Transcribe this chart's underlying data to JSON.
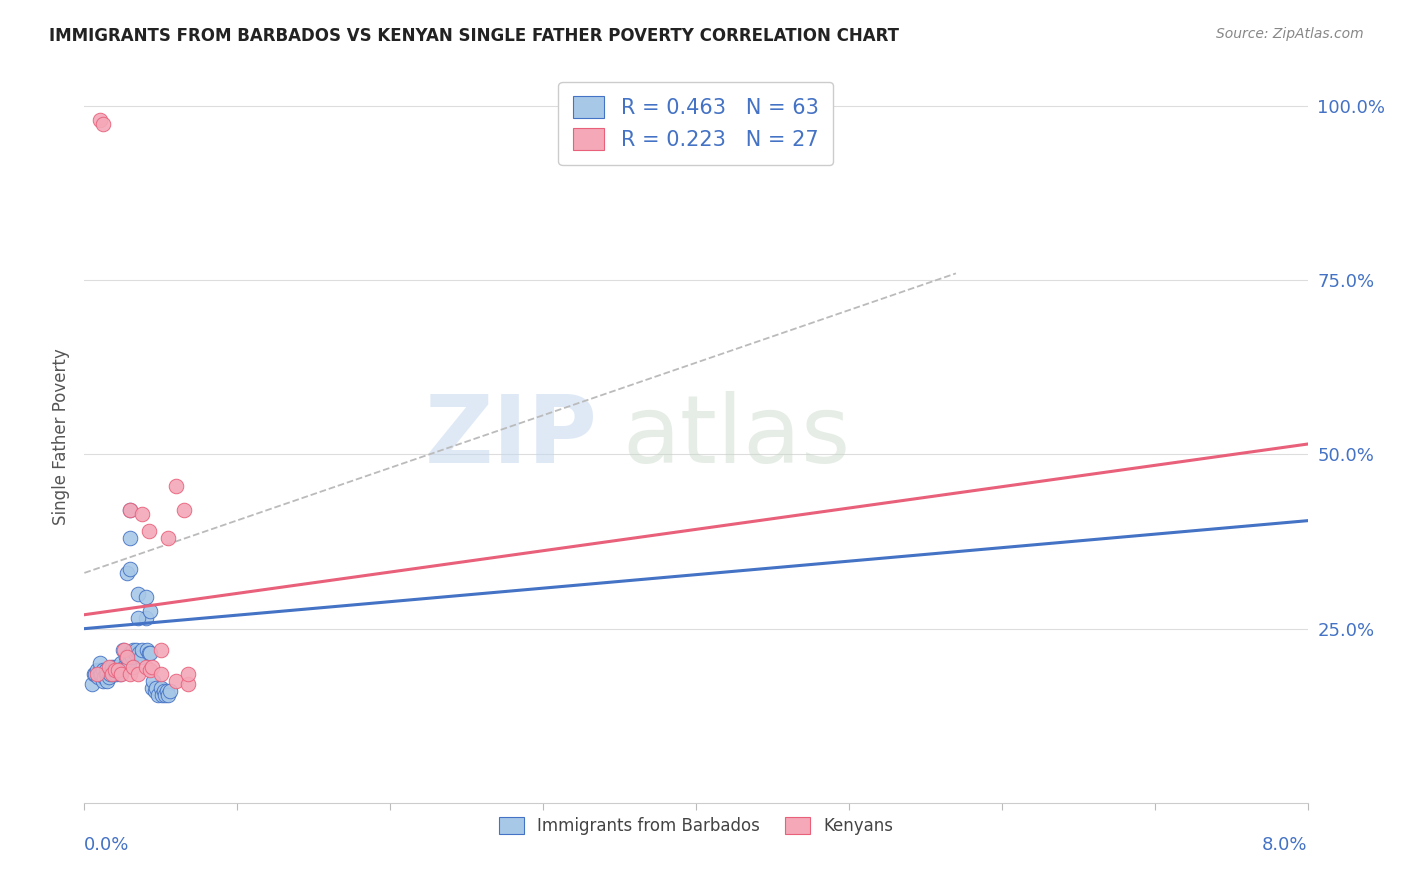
{
  "title": "IMMIGRANTS FROM BARBADOS VS KENYAN SINGLE FATHER POVERTY CORRELATION CHART",
  "source": "Source: ZipAtlas.com",
  "ylabel": "Single Father Poverty",
  "ytick_labels": [
    "25.0%",
    "50.0%",
    "75.0%",
    "100.0%"
  ],
  "ytick_values": [
    0.25,
    0.5,
    0.75,
    1.0
  ],
  "xlim": [
    0.0,
    0.08
  ],
  "ylim": [
    0.0,
    1.05
  ],
  "color_blue": "#A8C8E8",
  "color_pink": "#F4A8B8",
  "color_blue_line": "#4472C4",
  "color_pink_line": "#E8607A",
  "color_dashed": "#BBBBBB",
  "watermark_zip": "ZIP",
  "watermark_atlas": "atlas",
  "blue_scatter": [
    [
      0.0005,
      0.17
    ],
    [
      0.0006,
      0.185
    ],
    [
      0.0007,
      0.185
    ],
    [
      0.0008,
      0.19
    ],
    [
      0.0009,
      0.18
    ],
    [
      0.001,
      0.185
    ],
    [
      0.001,
      0.19
    ],
    [
      0.001,
      0.2
    ],
    [
      0.0011,
      0.185
    ],
    [
      0.0012,
      0.175
    ],
    [
      0.0012,
      0.19
    ],
    [
      0.0013,
      0.18
    ],
    [
      0.0014,
      0.185
    ],
    [
      0.0014,
      0.19
    ],
    [
      0.0015,
      0.185
    ],
    [
      0.0015,
      0.175
    ],
    [
      0.0016,
      0.18
    ],
    [
      0.0017,
      0.185
    ],
    [
      0.0018,
      0.195
    ],
    [
      0.0019,
      0.185
    ],
    [
      0.002,
      0.19
    ],
    [
      0.002,
      0.195
    ],
    [
      0.0021,
      0.185
    ],
    [
      0.0022,
      0.19
    ],
    [
      0.0023,
      0.185
    ],
    [
      0.0024,
      0.2
    ],
    [
      0.0025,
      0.22
    ],
    [
      0.0026,
      0.195
    ],
    [
      0.0027,
      0.21
    ],
    [
      0.0028,
      0.195
    ],
    [
      0.0029,
      0.2
    ],
    [
      0.003,
      0.215
    ],
    [
      0.0031,
      0.21
    ],
    [
      0.0032,
      0.22
    ],
    [
      0.0033,
      0.215
    ],
    [
      0.0034,
      0.22
    ],
    [
      0.0035,
      0.3
    ],
    [
      0.0036,
      0.215
    ],
    [
      0.0037,
      0.21
    ],
    [
      0.0038,
      0.22
    ],
    [
      0.004,
      0.265
    ],
    [
      0.0041,
      0.22
    ],
    [
      0.0042,
      0.215
    ],
    [
      0.0043,
      0.215
    ],
    [
      0.0044,
      0.165
    ],
    [
      0.0045,
      0.175
    ],
    [
      0.0046,
      0.16
    ],
    [
      0.0047,
      0.165
    ],
    [
      0.0048,
      0.155
    ],
    [
      0.005,
      0.165
    ],
    [
      0.0051,
      0.155
    ],
    [
      0.0052,
      0.16
    ],
    [
      0.0053,
      0.155
    ],
    [
      0.0054,
      0.16
    ],
    [
      0.0055,
      0.155
    ],
    [
      0.0056,
      0.16
    ],
    [
      0.0028,
      0.33
    ],
    [
      0.003,
      0.335
    ],
    [
      0.003,
      0.38
    ],
    [
      0.003,
      0.42
    ],
    [
      0.0035,
      0.265
    ],
    [
      0.004,
      0.295
    ],
    [
      0.0043,
      0.275
    ]
  ],
  "pink_scatter": [
    [
      0.0008,
      0.185
    ],
    [
      0.001,
      0.98
    ],
    [
      0.0012,
      0.975
    ],
    [
      0.0016,
      0.195
    ],
    [
      0.0018,
      0.185
    ],
    [
      0.002,
      0.19
    ],
    [
      0.0022,
      0.19
    ],
    [
      0.0024,
      0.185
    ],
    [
      0.0026,
      0.22
    ],
    [
      0.0028,
      0.21
    ],
    [
      0.003,
      0.185
    ],
    [
      0.003,
      0.42
    ],
    [
      0.0032,
      0.195
    ],
    [
      0.0035,
      0.185
    ],
    [
      0.0038,
      0.415
    ],
    [
      0.004,
      0.195
    ],
    [
      0.0042,
      0.39
    ],
    [
      0.0043,
      0.19
    ],
    [
      0.0044,
      0.195
    ],
    [
      0.005,
      0.22
    ],
    [
      0.005,
      0.185
    ],
    [
      0.0055,
      0.38
    ],
    [
      0.006,
      0.175
    ],
    [
      0.006,
      0.455
    ],
    [
      0.0065,
      0.42
    ],
    [
      0.0068,
      0.17
    ],
    [
      0.0068,
      0.185
    ]
  ],
  "blue_line_y_at_0": 0.25,
  "blue_line_y_at_8": 0.405,
  "pink_line_y_at_0": 0.27,
  "pink_line_y_at_8": 0.515,
  "dashed_line_x0": 0.0,
  "dashed_line_x1": 0.057,
  "dashed_line_y0": 0.33,
  "dashed_line_y1": 0.76
}
